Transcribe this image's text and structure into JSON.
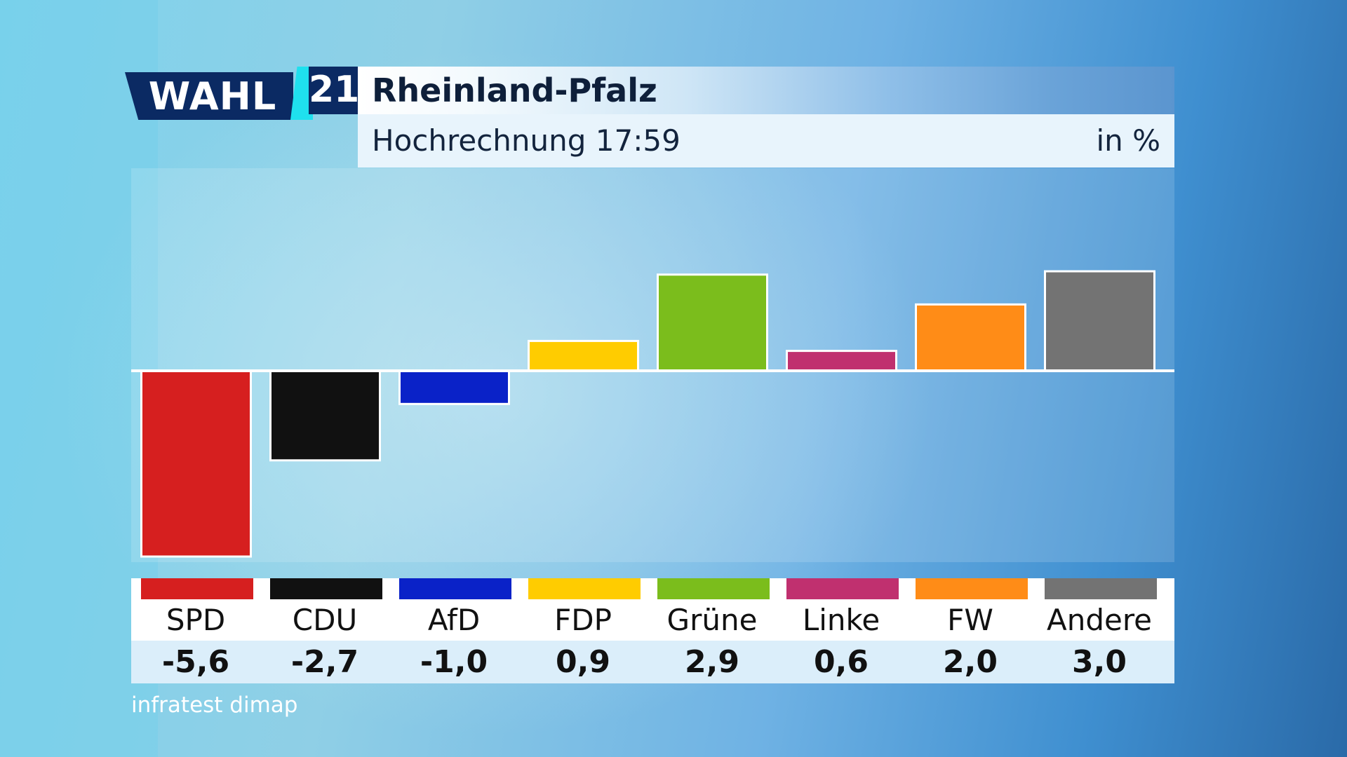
{
  "header": {
    "logo_text": "WAHL",
    "logo_number": "21",
    "title": "Rheinland-Pfalz",
    "subtitle": "Hochrechnung 17:59",
    "unit": "in %"
  },
  "colors": {
    "logo_navy": "#0b2a63",
    "logo_accent": "#1fe0ee",
    "baseline": "#ffffff"
  },
  "chart_data": {
    "type": "bar",
    "categories": [
      "SPD",
      "CDU",
      "AfD",
      "FDP",
      "Grüne",
      "Linke",
      "FW",
      "Andere"
    ],
    "values": [
      -5.6,
      -2.7,
      -1.0,
      0.9,
      2.9,
      0.6,
      2.0,
      3.0
    ],
    "value_labels": [
      "-5,6",
      "-2,7",
      "-1,0",
      "0,9",
      "2,9",
      "0,6",
      "2,0",
      "3,0"
    ],
    "colors": [
      "#d61f1f",
      "#111111",
      "#0a22c8",
      "#ffcc00",
      "#7bbd1c",
      "#c0306f",
      "#ff8c17",
      "#737373"
    ],
    "ylim": [
      -5.8,
      5.6
    ],
    "title": "Rheinland-Pfalz",
    "subtitle": "Hochrechnung 17:59",
    "ylabel": "in %",
    "legend": "none",
    "grid": false
  },
  "footer": {
    "source": "infratest dimap"
  }
}
